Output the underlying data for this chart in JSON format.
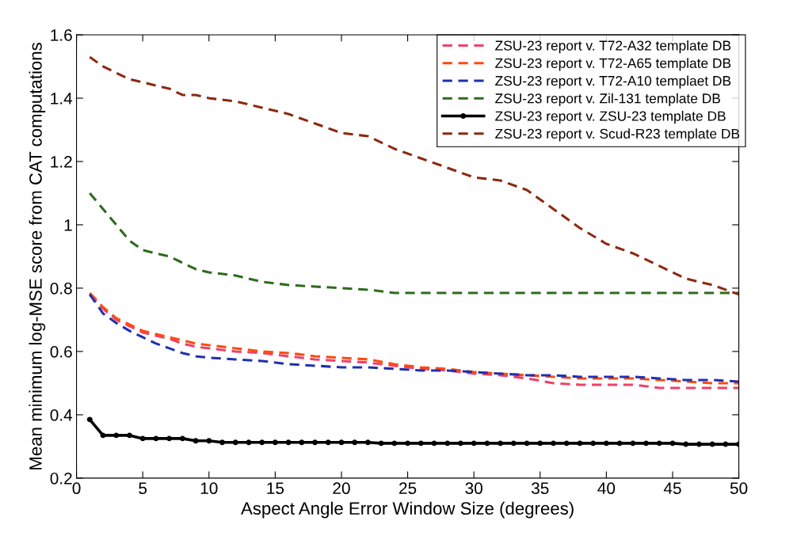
{
  "chart_data": {
    "type": "line",
    "xlabel": "Aspect Angle Error Window Size (degrees)",
    "ylabel": "Mean minimum log-MSE score from CAT computations",
    "xlim": [
      0,
      50
    ],
    "xticks": [
      0,
      5,
      10,
      15,
      20,
      25,
      30,
      35,
      40,
      45,
      50
    ],
    "ylim": [
      0.2,
      1.6
    ],
    "yticks": [
      0.2,
      0.4,
      0.6,
      0.8,
      1,
      1.2,
      1.4,
      1.6
    ],
    "grid": false,
    "legend": "top right",
    "x": [
      1,
      2,
      3,
      4,
      5,
      6,
      7,
      8,
      9,
      10,
      12,
      14,
      16,
      18,
      20,
      22,
      24,
      26,
      28,
      30,
      32,
      34,
      36,
      38,
      40,
      42,
      44,
      46,
      48,
      50
    ],
    "series": [
      {
        "name": "ZSU-23 report v. T72-A32 template DB",
        "color": "#f0406a",
        "line_style": "dashed",
        "marker": "none",
        "values": [
          0.78,
          0.735,
          0.7,
          0.68,
          0.66,
          0.65,
          0.64,
          0.625,
          0.615,
          0.61,
          0.6,
          0.595,
          0.585,
          0.575,
          0.57,
          0.565,
          0.555,
          0.545,
          0.54,
          0.53,
          0.525,
          0.515,
          0.5,
          0.495,
          0.495,
          0.495,
          0.485,
          0.485,
          0.485,
          0.485
        ]
      },
      {
        "name": "ZSU-23 report v. T72-A65 template DB",
        "color": "#ff4a10",
        "line_style": "dashed",
        "marker": "none",
        "values": [
          0.785,
          0.74,
          0.705,
          0.685,
          0.665,
          0.655,
          0.645,
          0.635,
          0.625,
          0.62,
          0.61,
          0.6,
          0.595,
          0.585,
          0.58,
          0.575,
          0.56,
          0.55,
          0.545,
          0.535,
          0.53,
          0.525,
          0.52,
          0.515,
          0.515,
          0.515,
          0.51,
          0.505,
          0.5,
          0.5
        ]
      },
      {
        "name": "ZSU-23 report v. T72-A10 templaet DB",
        "color": "#2030b0",
        "line_style": "dashed",
        "marker": "none",
        "values": [
          0.78,
          0.72,
          0.69,
          0.665,
          0.645,
          0.625,
          0.61,
          0.595,
          0.585,
          0.58,
          0.575,
          0.57,
          0.56,
          0.555,
          0.55,
          0.55,
          0.545,
          0.54,
          0.54,
          0.535,
          0.53,
          0.525,
          0.525,
          0.52,
          0.52,
          0.52,
          0.515,
          0.51,
          0.51,
          0.505
        ]
      },
      {
        "name": "ZSU-23 report v. Zil-131 template DB",
        "color": "#2e6b1e",
        "line_style": "dashed",
        "marker": "none",
        "values": [
          1.1,
          1.05,
          1.0,
          0.95,
          0.92,
          0.91,
          0.9,
          0.88,
          0.86,
          0.85,
          0.84,
          0.82,
          0.81,
          0.805,
          0.8,
          0.795,
          0.785,
          0.785,
          0.785,
          0.785,
          0.785,
          0.785,
          0.785,
          0.785,
          0.785,
          0.785,
          0.785,
          0.785,
          0.785,
          0.785
        ]
      },
      {
        "name": "ZSU-23 report v. ZSU-23 template DB",
        "color": "#000000",
        "line_style": "solid",
        "marker": "circle",
        "x": [
          1,
          2,
          3,
          4,
          5,
          6,
          7,
          8,
          9,
          10,
          11,
          12,
          13,
          14,
          15,
          16,
          17,
          18,
          19,
          20,
          21,
          22,
          23,
          24,
          25,
          26,
          27,
          28,
          29,
          30,
          31,
          32,
          33,
          34,
          35,
          36,
          37,
          38,
          39,
          40,
          41,
          42,
          43,
          44,
          45,
          46,
          47,
          48,
          49,
          50
        ],
        "values": [
          0.385,
          0.335,
          0.335,
          0.335,
          0.325,
          0.325,
          0.325,
          0.325,
          0.318,
          0.318,
          0.313,
          0.313,
          0.313,
          0.313,
          0.313,
          0.313,
          0.313,
          0.313,
          0.313,
          0.313,
          0.313,
          0.313,
          0.31,
          0.31,
          0.31,
          0.31,
          0.31,
          0.31,
          0.31,
          0.31,
          0.31,
          0.31,
          0.31,
          0.31,
          0.31,
          0.31,
          0.31,
          0.31,
          0.31,
          0.31,
          0.31,
          0.31,
          0.31,
          0.31,
          0.31,
          0.307,
          0.307,
          0.307,
          0.307,
          0.307
        ]
      },
      {
        "name": "ZSU-23 report v. Scud-R23 template DB",
        "color": "#8b2a10",
        "line_style": "dashed",
        "marker": "none",
        "values": [
          1.53,
          1.5,
          1.48,
          1.46,
          1.45,
          1.44,
          1.43,
          1.41,
          1.41,
          1.4,
          1.39,
          1.37,
          1.35,
          1.32,
          1.29,
          1.28,
          1.24,
          1.21,
          1.18,
          1.15,
          1.14,
          1.11,
          1.05,
          0.99,
          0.94,
          0.91,
          0.87,
          0.83,
          0.81,
          0.78
        ]
      }
    ]
  }
}
